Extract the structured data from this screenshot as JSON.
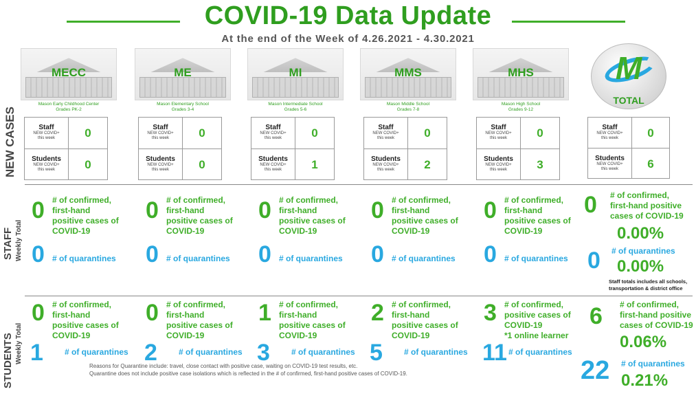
{
  "header": {
    "title": "COVID-19 Data Update",
    "subtitle": "At the end of the Week of 4.26.2021 - 4.30.2021"
  },
  "row_labels": {
    "new_cases": "NEW CASES",
    "staff": "STAFF",
    "staff_sub": "Weekly Total",
    "students": "STUDENTS",
    "students_sub": "Weekly Total"
  },
  "new_case_labels": {
    "staff": "Staff",
    "students": "Students",
    "new_covid": "NEW COVID+",
    "this_week": "this week"
  },
  "schools": [
    {
      "abbr": "MECC",
      "name": "Mason Early Childhood Center",
      "grades": "Grades PK-2",
      "new_staff": "0",
      "new_students": "0",
      "staff_confirmed": "0",
      "staff_quarantines": "0",
      "student_confirmed": "0",
      "student_quarantines": "1"
    },
    {
      "abbr": "ME",
      "name": "Mason Elementary School",
      "grades": "Grades 3-4",
      "new_staff": "0",
      "new_students": "0",
      "staff_confirmed": "0",
      "staff_quarantines": "0",
      "student_confirmed": "0",
      "student_quarantines": "2"
    },
    {
      "abbr": "MI",
      "name": "Mason Intermediate  School",
      "grades": "Grades 5-6",
      "new_staff": "0",
      "new_students": "1",
      "staff_confirmed": "0",
      "staff_quarantines": "0",
      "student_confirmed": "1",
      "student_quarantines": "3"
    },
    {
      "abbr": "MMS",
      "name": "Mason Middle School",
      "grades": "Grades 7-8",
      "new_staff": "0",
      "new_students": "2",
      "staff_confirmed": "0",
      "staff_quarantines": "0",
      "student_confirmed": "2",
      "student_quarantines": "5"
    },
    {
      "abbr": "MHS",
      "name": "Mason High School",
      "grades": "Grades 9-12",
      "new_staff": "0",
      "new_students": "3",
      "staff_confirmed": "0",
      "staff_quarantines": "0",
      "student_confirmed": "3",
      "student_quarantines": "11",
      "student_note": "*1 online learner"
    }
  ],
  "total": {
    "label": "TOTAL",
    "logo_letter": "M",
    "new_staff": "0",
    "new_students": "6",
    "staff_confirmed": "0",
    "staff_confirmed_pct": "0.00%",
    "staff_quarantines": "0",
    "staff_quarantines_pct": "0.00%",
    "staff_note": "Staff totals includes all schools, transportation & district office",
    "student_confirmed": "6",
    "student_confirmed_pct": "0.06%",
    "student_quarantines": "22",
    "student_quarantines_pct": "0.21%"
  },
  "labels": {
    "confirmed_l1": "# of confirmed,",
    "confirmed_l2": "first-hand",
    "confirmed_l3": "positive cases of",
    "confirmed_l4": "COVID-19",
    "total_confirmed_l2": "first-hand positive",
    "total_confirmed_l3": "cases of COVID-19",
    "quarantines": "# of quarantines"
  },
  "footnote": {
    "line1": "Reasons for Quarantine include: travel, close contact with positive case, waiting on COVID-19 test results, etc.",
    "line2": "Quarantine does not include positive case isolations which is reflected in the # of confirmed, first-hand positive cases of COVID-19."
  },
  "colors": {
    "green": "#3fae29",
    "blue": "#29a8e0"
  }
}
